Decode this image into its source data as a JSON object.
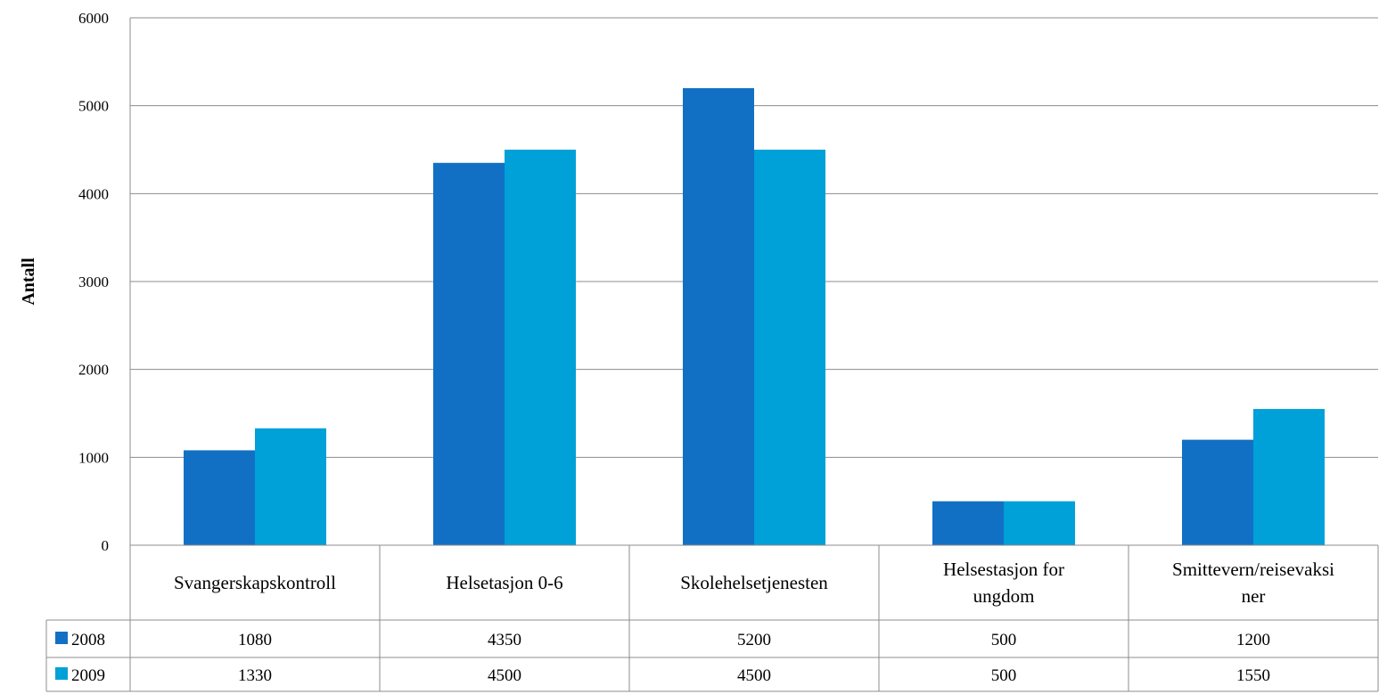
{
  "chart_data": {
    "type": "bar",
    "ylabel": "Antall",
    "ylim": [
      0,
      6000
    ],
    "yticks": [
      0,
      1000,
      2000,
      3000,
      4000,
      5000,
      6000
    ],
    "grid": true,
    "legend": "data-table-left",
    "categories": [
      [
        "Svangerskapskontroll"
      ],
      [
        "Helsetasjon 0-6"
      ],
      [
        "Skolehelsetjenesten"
      ],
      [
        "Helsestasjon for",
        "ungdom"
      ],
      [
        "Smittevern/reisevaksi",
        "ner"
      ]
    ],
    "series": [
      {
        "name": "2008",
        "color": "#1170c4",
        "values": [
          1080,
          4350,
          5200,
          500,
          1200
        ]
      },
      {
        "name": "2009",
        "color": "#00a0d8",
        "values": [
          1330,
          4500,
          4500,
          500,
          1550
        ]
      }
    ]
  }
}
